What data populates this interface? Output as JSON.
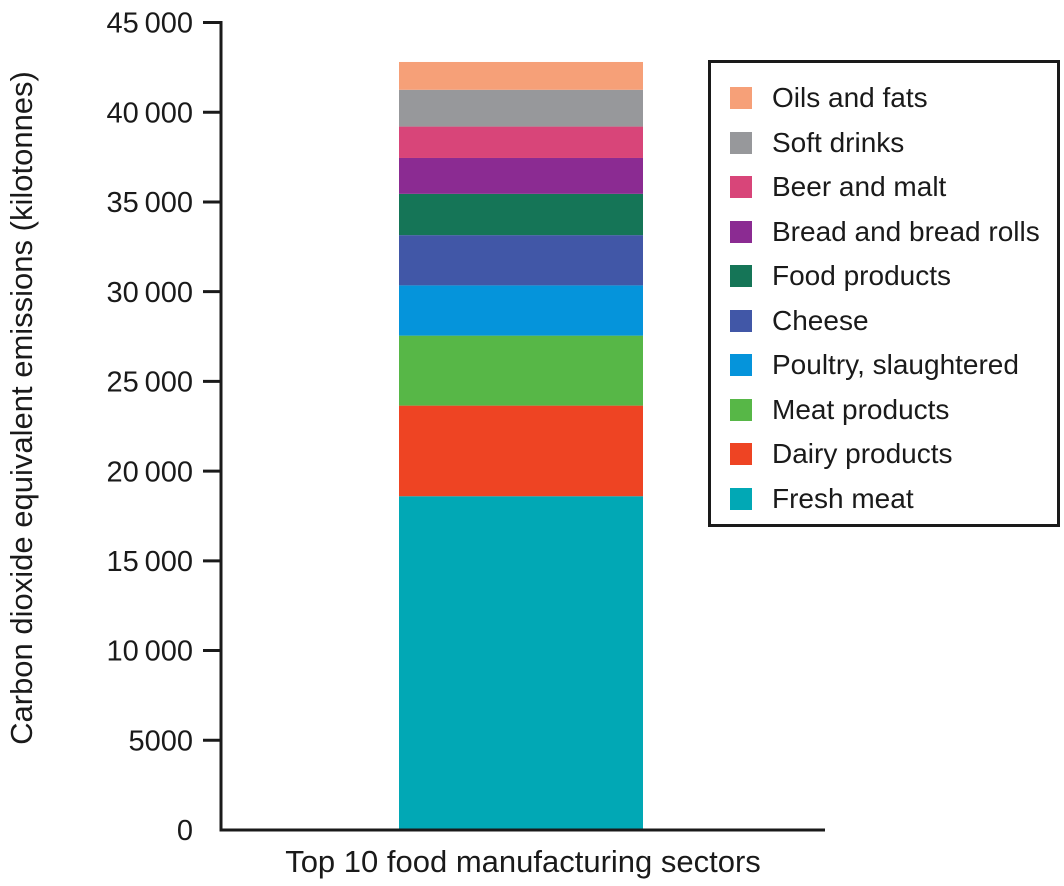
{
  "chart_data": {
    "type": "bar",
    "stacked": true,
    "title": "",
    "xlabel": "Top 10 food manufacturing sectors",
    "ylabel": "Carbon dioxide equivalent emissions (kilotonnes)",
    "ylim": [
      0,
      45000
    ],
    "ytick_step": 5000,
    "grid": false,
    "legend_position": "upper right",
    "categories": [
      "Top 10 food manufacturing sectors"
    ],
    "yticks": [
      {
        "value": 0,
        "label": "0"
      },
      {
        "value": 5000,
        "label": "5000"
      },
      {
        "value": 10000,
        "label": "10 000"
      },
      {
        "value": 15000,
        "label": "15 000"
      },
      {
        "value": 20000,
        "label": "20 000"
      },
      {
        "value": 25000,
        "label": "25 000"
      },
      {
        "value": 30000,
        "label": "30 000"
      },
      {
        "value": 35000,
        "label": "35 000"
      },
      {
        "value": 40000,
        "label": "40 000"
      },
      {
        "value": 45000,
        "label": "45 000"
      }
    ],
    "series": [
      {
        "name": "Fresh meat",
        "value": 18600,
        "color": "#01A8B5"
      },
      {
        "name": "Dairy products",
        "value": 5050,
        "color": "#EE4423"
      },
      {
        "name": "Meat products",
        "value": 3900,
        "color": "#57B747"
      },
      {
        "name": "Poultry, slaughtered",
        "value": 2800,
        "color": "#0594DB"
      },
      {
        "name": "Cheese",
        "value": 2800,
        "color": "#4157A7"
      },
      {
        "name": "Food products",
        "value": 2300,
        "color": "#157557"
      },
      {
        "name": "Bread and bread rolls",
        "value": 2000,
        "color": "#8B2B92"
      },
      {
        "name": "Beer and malt",
        "value": 1750,
        "color": "#D84579"
      },
      {
        "name": "Soft drinks",
        "value": 2050,
        "color": "#97989B"
      },
      {
        "name": "Oils and fats",
        "value": 1550,
        "color": "#F6A078"
      }
    ],
    "total": 42800,
    "legend_order_top_to_bottom": [
      "Oils and fats",
      "Soft drinks",
      "Beer and malt",
      "Bread and bread rolls",
      "Food products",
      "Cheese",
      "Poultry, slaughtered",
      "Meat products",
      "Dairy products",
      "Fresh meat"
    ]
  },
  "colors": {
    "axis": "#1a1a1a",
    "text": "#1a1a1a",
    "background": "#ffffff"
  }
}
